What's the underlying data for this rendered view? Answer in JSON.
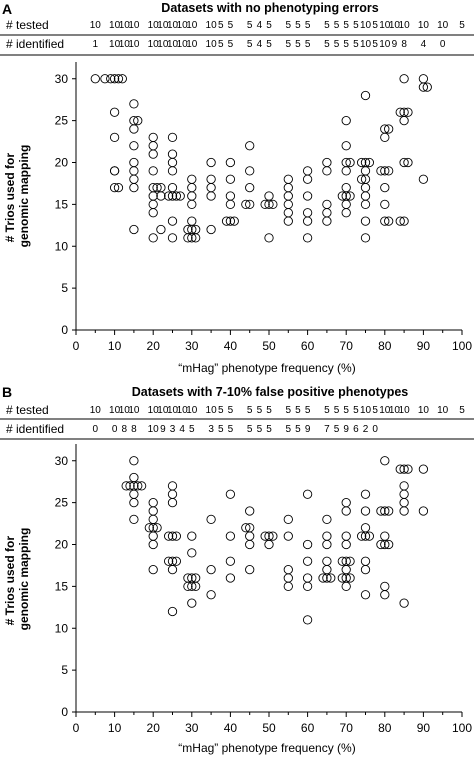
{
  "chart_data": [
    {
      "panel": "A",
      "type": "scatter",
      "title": "Datasets with no phenotyping errors",
      "row_labels": [
        "# tested",
        "# identified"
      ],
      "x_groups": [
        5,
        10,
        12.5,
        15,
        20,
        22.5,
        25,
        27.5,
        30,
        35,
        37.5,
        40,
        45,
        47.5,
        50,
        55,
        57.5,
        60,
        65,
        67.5,
        70,
        72.5,
        75,
        77.5,
        80,
        82.5,
        85,
        90,
        95,
        100
      ],
      "tested": [
        "10",
        "10",
        "10",
        "10",
        "10",
        "10",
        "10",
        "10",
        "10",
        "10",
        "5",
        "5",
        "5",
        "4",
        "5",
        "5",
        "5",
        "5",
        "5",
        "5",
        "5",
        "5",
        "10",
        "5",
        "10",
        "10",
        "10",
        "10",
        "10",
        "5"
      ],
      "identified": [
        "1",
        "10",
        "10",
        "10",
        "10",
        "10",
        "10",
        "10",
        "10",
        "10",
        "5",
        "5",
        "5",
        "4",
        "5",
        "5",
        "5",
        "5",
        "5",
        "5",
        "5",
        "5",
        "10",
        "5",
        "10",
        "9",
        "8",
        "4",
        "0",
        ""
      ],
      "points": [
        [
          5,
          30
        ],
        [
          7.5,
          30
        ],
        [
          9,
          30
        ],
        [
          10,
          30
        ],
        [
          11,
          30
        ],
        [
          12,
          30
        ],
        [
          10,
          26
        ],
        [
          10,
          23
        ],
        [
          10,
          19
        ],
        [
          10,
          17
        ],
        [
          11,
          17
        ],
        [
          10,
          19
        ],
        [
          15,
          27
        ],
        [
          15,
          25
        ],
        [
          15,
          24
        ],
        [
          15,
          22
        ],
        [
          15,
          20
        ],
        [
          15,
          19
        ],
        [
          15,
          18
        ],
        [
          15,
          17
        ],
        [
          15,
          12
        ],
        [
          16,
          25
        ],
        [
          20,
          23
        ],
        [
          20,
          22
        ],
        [
          20,
          21
        ],
        [
          20,
          19
        ],
        [
          20,
          17
        ],
        [
          20,
          16
        ],
        [
          20,
          15
        ],
        [
          20,
          14
        ],
        [
          20,
          11
        ],
        [
          21,
          17
        ],
        [
          22,
          17
        ],
        [
          22,
          16
        ],
        [
          22,
          12
        ],
        [
          25,
          23
        ],
        [
          25,
          21
        ],
        [
          25,
          20
        ],
        [
          25,
          19
        ],
        [
          25,
          17
        ],
        [
          25,
          16
        ],
        [
          25,
          13
        ],
        [
          25,
          11
        ],
        [
          24,
          16
        ],
        [
          26,
          16
        ],
        [
          27,
          16
        ],
        [
          30,
          18
        ],
        [
          30,
          17
        ],
        [
          30,
          16
        ],
        [
          30,
          15
        ],
        [
          30,
          13
        ],
        [
          30,
          12
        ],
        [
          30,
          11
        ],
        [
          29,
          12
        ],
        [
          29,
          11
        ],
        [
          31,
          12
        ],
        [
          31,
          11
        ],
        [
          35,
          20
        ],
        [
          35,
          18
        ],
        [
          35,
          17
        ],
        [
          35,
          16
        ],
        [
          35,
          12
        ],
        [
          40,
          20
        ],
        [
          40,
          18
        ],
        [
          40,
          16
        ],
        [
          40,
          15
        ],
        [
          40,
          13
        ],
        [
          39,
          13
        ],
        [
          41,
          13
        ],
        [
          45,
          22
        ],
        [
          45,
          19
        ],
        [
          45,
          17
        ],
        [
          45,
          15
        ],
        [
          44,
          15
        ],
        [
          50,
          16
        ],
        [
          50,
          15
        ],
        [
          50,
          11
        ],
        [
          49,
          15
        ],
        [
          51,
          15
        ],
        [
          55,
          18
        ],
        [
          55,
          17
        ],
        [
          55,
          16
        ],
        [
          55,
          15
        ],
        [
          55,
          14
        ],
        [
          55,
          13
        ],
        [
          60,
          19
        ],
        [
          60,
          18
        ],
        [
          60,
          16
        ],
        [
          60,
          14
        ],
        [
          60,
          13
        ],
        [
          60,
          11
        ],
        [
          65,
          20
        ],
        [
          65,
          19
        ],
        [
          65,
          15
        ],
        [
          65,
          14
        ],
        [
          65,
          13
        ],
        [
          70,
          25
        ],
        [
          70,
          22
        ],
        [
          70,
          20
        ],
        [
          70,
          19
        ],
        [
          70,
          17
        ],
        [
          70,
          16
        ],
        [
          70,
          15
        ],
        [
          70,
          14
        ],
        [
          69,
          16
        ],
        [
          71,
          16
        ],
        [
          71,
          20
        ],
        [
          75,
          28
        ],
        [
          75,
          20
        ],
        [
          75,
          19
        ],
        [
          75,
          18
        ],
        [
          75,
          17
        ],
        [
          75,
          16
        ],
        [
          75,
          15
        ],
        [
          75,
          13
        ],
        [
          75,
          11
        ],
        [
          74,
          20
        ],
        [
          74,
          18
        ],
        [
          76,
          20
        ],
        [
          80,
          24
        ],
        [
          80,
          23
        ],
        [
          80,
          19
        ],
        [
          80,
          17
        ],
        [
          80,
          15
        ],
        [
          80,
          13
        ],
        [
          79,
          19
        ],
        [
          81,
          19
        ],
        [
          81,
          24
        ],
        [
          81,
          13
        ],
        [
          85,
          30
        ],
        [
          85,
          26
        ],
        [
          85,
          25
        ],
        [
          85,
          20
        ],
        [
          85,
          13
        ],
        [
          84,
          26
        ],
        [
          84,
          13
        ],
        [
          86,
          26
        ],
        [
          86,
          20
        ],
        [
          90,
          30
        ],
        [
          90,
          29
        ],
        [
          90,
          18
        ],
        [
          91,
          29
        ]
      ],
      "x_ticks": [
        "0",
        "10",
        "20",
        "30",
        "40",
        "50",
        "60",
        "70",
        "80",
        "90",
        "100"
      ],
      "y_ticks": [
        "0",
        "5",
        "10",
        "15",
        "20",
        "25",
        "30"
      ],
      "xlim": [
        0,
        100
      ],
      "ylim": [
        0,
        32
      ],
      "xlabel": "“mHag” phenotype frequency (%)",
      "ylabel": [
        "# Trios used for",
        "genomic mapping"
      ],
      "grid": false
    },
    {
      "panel": "B",
      "type": "scatter",
      "title": "Datasets with 7-10% false positive phenotypes",
      "row_labels": [
        "# tested",
        "# identified"
      ],
      "x_groups": [
        5,
        10,
        12.5,
        15,
        20,
        22.5,
        25,
        27.5,
        30,
        35,
        37.5,
        40,
        45,
        47.5,
        50,
        55,
        57.5,
        60,
        65,
        67.5,
        70,
        72.5,
        75,
        77.5,
        80,
        82.5,
        85,
        90,
        95,
        100
      ],
      "tested": [
        "10",
        "10",
        "10",
        "10",
        "10",
        "10",
        "10",
        "10",
        "10",
        "10",
        "5",
        "5",
        "5",
        "5",
        "5",
        "5",
        "5",
        "5",
        "5",
        "5",
        "5",
        "5",
        "10",
        "5",
        "10",
        "10",
        "10",
        "10",
        "10",
        "5"
      ],
      "identified": [
        "0",
        "0",
        "8",
        "8",
        "10",
        "9",
        "3",
        "4",
        "5",
        "3",
        "5",
        "5",
        "5",
        "5",
        "5",
        "5",
        "5",
        "9",
        "7",
        "5",
        "9",
        "6",
        "2",
        "0",
        "",
        "",
        "",
        "",
        "",
        ""
      ],
      "points": [
        [
          15,
          30
        ],
        [
          15,
          28
        ],
        [
          15,
          27
        ],
        [
          15,
          26
        ],
        [
          15,
          25
        ],
        [
          15,
          23
        ],
        [
          13,
          27
        ],
        [
          14,
          27
        ],
        [
          16,
          27
        ],
        [
          17,
          27
        ],
        [
          20,
          25
        ],
        [
          20,
          24
        ],
        [
          20,
          23
        ],
        [
          20,
          22
        ],
        [
          20,
          21
        ],
        [
          20,
          20
        ],
        [
          20,
          17
        ],
        [
          19,
          22
        ],
        [
          21,
          22
        ],
        [
          25,
          27
        ],
        [
          25,
          26
        ],
        [
          25,
          25
        ],
        [
          25,
          21
        ],
        [
          25,
          18
        ],
        [
          25,
          17
        ],
        [
          25,
          12
        ],
        [
          24,
          21
        ],
        [
          26,
          21
        ],
        [
          24,
          18
        ],
        [
          26,
          18
        ],
        [
          30,
          21
        ],
        [
          30,
          19
        ],
        [
          30,
          16
        ],
        [
          30,
          15
        ],
        [
          30,
          13
        ],
        [
          29,
          16
        ],
        [
          31,
          16
        ],
        [
          31,
          15
        ],
        [
          29,
          15
        ],
        [
          35,
          23
        ],
        [
          35,
          17
        ],
        [
          35,
          14
        ],
        [
          40,
          26
        ],
        [
          40,
          21
        ],
        [
          40,
          18
        ],
        [
          40,
          16
        ],
        [
          45,
          24
        ],
        [
          45,
          22
        ],
        [
          45,
          21
        ],
        [
          45,
          20
        ],
        [
          45,
          17
        ],
        [
          44,
          22
        ],
        [
          50,
          21
        ],
        [
          50,
          20
        ],
        [
          49,
          21
        ],
        [
          51,
          21
        ],
        [
          55,
          23
        ],
        [
          55,
          21
        ],
        [
          55,
          17
        ],
        [
          55,
          16
        ],
        [
          55,
          15
        ],
        [
          60,
          26
        ],
        [
          60,
          20
        ],
        [
          60,
          18
        ],
        [
          60,
          16
        ],
        [
          60,
          15
        ],
        [
          60,
          11
        ],
        [
          65,
          23
        ],
        [
          65,
          21
        ],
        [
          65,
          20
        ],
        [
          65,
          18
        ],
        [
          65,
          17
        ],
        [
          65,
          16
        ],
        [
          64,
          16
        ],
        [
          66,
          16
        ],
        [
          70,
          25
        ],
        [
          70,
          24
        ],
        [
          70,
          21
        ],
        [
          70,
          20
        ],
        [
          70,
          18
        ],
        [
          70,
          17
        ],
        [
          70,
          16
        ],
        [
          70,
          15
        ],
        [
          69,
          18
        ],
        [
          71,
          18
        ],
        [
          69,
          16
        ],
        [
          71,
          16
        ],
        [
          75,
          26
        ],
        [
          75,
          24
        ],
        [
          75,
          22
        ],
        [
          75,
          21
        ],
        [
          75,
          18
        ],
        [
          75,
          17
        ],
        [
          75,
          14
        ],
        [
          74,
          21
        ],
        [
          76,
          21
        ],
        [
          80,
          30
        ],
        [
          80,
          24
        ],
        [
          80,
          21
        ],
        [
          80,
          20
        ],
        [
          80,
          15
        ],
        [
          80,
          14
        ],
        [
          79,
          24
        ],
        [
          79,
          20
        ],
        [
          81,
          20
        ],
        [
          81,
          24
        ],
        [
          85,
          29
        ],
        [
          85,
          27
        ],
        [
          85,
          26
        ],
        [
          85,
          25
        ],
        [
          85,
          24
        ],
        [
          85,
          13
        ],
        [
          84,
          29
        ],
        [
          86,
          29
        ],
        [
          90,
          29
        ],
        [
          90,
          24
        ]
      ],
      "x_ticks": [
        "0",
        "10",
        "20",
        "30",
        "40",
        "50",
        "60",
        "70",
        "80",
        "90",
        "100"
      ],
      "y_ticks": [
        "0",
        "5",
        "10",
        "15",
        "20",
        "25",
        "30"
      ],
      "xlim": [
        0,
        100
      ],
      "ylim": [
        0,
        32
      ],
      "xlabel": "“mHag” phenotype frequency (%)",
      "ylabel": [
        "# Trios used for",
        "genomic mapping"
      ],
      "grid": false
    }
  ]
}
